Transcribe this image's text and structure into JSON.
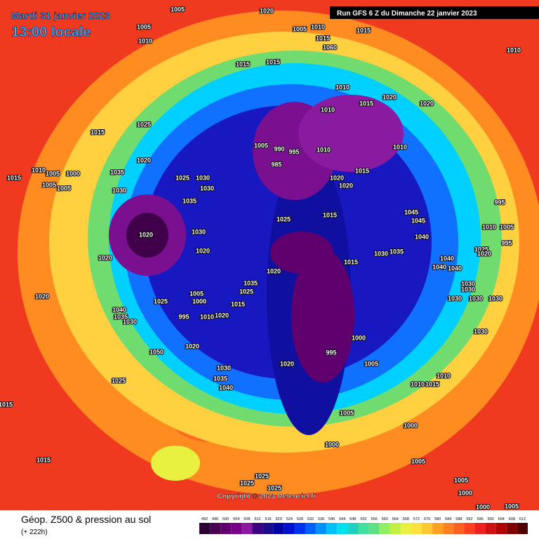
{
  "header": {
    "date": "Mardi 31 janvier 2023",
    "time": "13:00 locale",
    "run": "Run GFS 6 Z du Dimanche 22 janvier 2023"
  },
  "legend": {
    "title": "Géop. Z500 & pression au sol",
    "subtitle": "(+ 222h)",
    "copyright": "Copyright © 2023 Meteociel.fr"
  },
  "scale": {
    "values": [
      492,
      496,
      500,
      504,
      508,
      512,
      516,
      520,
      524,
      528,
      532,
      536,
      540,
      544,
      548,
      552,
      556,
      560,
      564,
      568,
      572,
      576,
      580,
      584,
      588,
      592,
      596,
      600,
      604,
      608,
      612
    ],
    "colors": [
      "#2b0033",
      "#4a0050",
      "#60006e",
      "#78008a",
      "#8c1aa0",
      "#3c0080",
      "#1a0a8c",
      "#0000a8",
      "#0010d0",
      "#0030f0",
      "#0060ff",
      "#0090ff",
      "#00c0ff",
      "#00e0f0",
      "#20d0c0",
      "#40e0a0",
      "#60e080",
      "#90f060",
      "#c0f040",
      "#e8f040",
      "#ffe040",
      "#ffc830",
      "#ffa020",
      "#ff8020",
      "#ff6020",
      "#ff4020",
      "#f02020",
      "#d01010",
      "#b00000",
      "#800000",
      "#500000"
    ]
  },
  "isobar_labels": [
    1005,
    1020,
    1005,
    1010,
    1005,
    1010,
    1015,
    1015,
    1060,
    1010,
    1015,
    1015,
    1010,
    1020,
    1015,
    1020,
    1010,
    1015,
    1025,
    1005,
    990,
    995,
    1010,
    1010,
    1020,
    985,
    1010,
    1005,
    1000,
    1035,
    1025,
    1030,
    1020,
    1015,
    1020,
    1015,
    1005,
    1005,
    1030,
    1030,
    1035,
    995,
    1025,
    1015,
    1045,
    1045,
    1010,
    1005,
    1030,
    1020,
    1040,
    995,
    1020,
    1035,
    1030,
    1020,
    1015,
    1025,
    1020,
    1040,
    1040,
    1040,
    1020,
    1035,
    1025,
    1030,
    1030,
    1030,
    1030,
    1030,
    1020,
    1005,
    1000,
    1025,
    1015,
    1040,
    1035,
    1030,
    995,
    1010,
    1020,
    1000,
    995,
    1030,
    1050,
    1020,
    1020,
    1005,
    1030,
    1035,
    1040,
    1025,
    1010,
    1010,
    1015,
    1015,
    1005,
    1000,
    1000,
    1005,
    1015,
    1025,
    1025,
    1025,
    1005,
    1000,
    1000,
    1005
  ]
}
